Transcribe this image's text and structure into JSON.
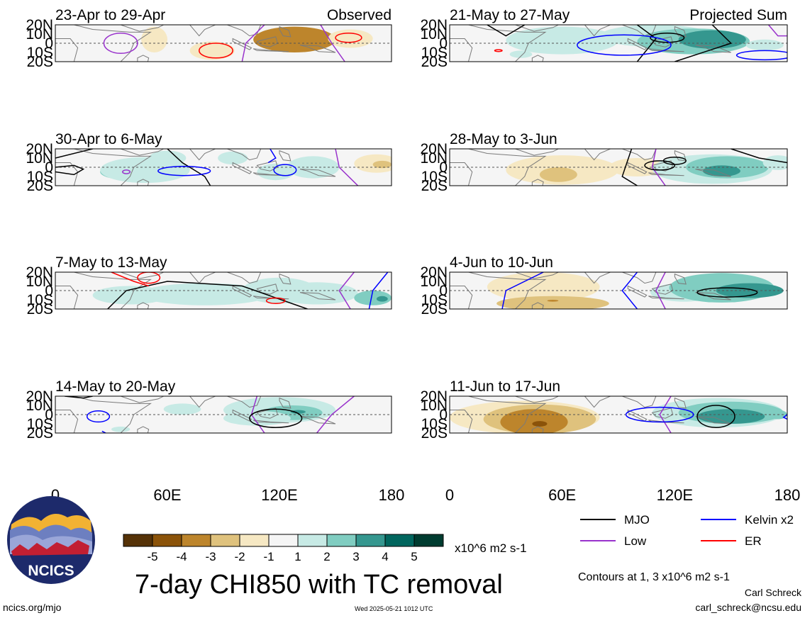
{
  "chart_data": {
    "type": "heatmap",
    "title": "7-day CHI850 with TC removal",
    "variable": "CHI850 (7-day mean, TC removed)",
    "units": "x10^6 m2 s-1",
    "xticks": [
      "0",
      "60E",
      "120E",
      "180"
    ],
    "yticks": [
      "20N",
      "10N",
      "0",
      "10S",
      "20S"
    ],
    "xlim": [
      0,
      180
    ],
    "ylim": [
      -20,
      20
    ],
    "colorbar": {
      "labels": [
        "-5",
        "-4",
        "-3",
        "-2",
        "-1",
        "1",
        "2",
        "3",
        "4",
        "5"
      ],
      "colors": [
        "#553207",
        "#8b5309",
        "#bd852c",
        "#dfc27d",
        "#f6e8c3",
        "#f5f5f5",
        "#c7eae5",
        "#80cdc1",
        "#35978f",
        "#01665e",
        "#003c30"
      ]
    },
    "contour_note": "Contours at 1, 3 x10^6 m2 s-1",
    "legend": [
      {
        "label": "MJO",
        "color": "#000000"
      },
      {
        "label": "Kelvin x2",
        "color": "#0000ff"
      },
      {
        "label": "Low",
        "color": "#9932cc"
      },
      {
        "label": "ER",
        "color": "#ff0000"
      }
    ],
    "panels": [
      {
        "period": "23-Apr to 29-Apr",
        "tag": "Observed"
      },
      {
        "period": "30-Apr to 6-May",
        "tag": ""
      },
      {
        "period": "7-May to 13-May",
        "tag": ""
      },
      {
        "period": "14-May to 20-May",
        "tag": ""
      },
      {
        "period": "21-May to 27-May",
        "tag": "Projected Sum"
      },
      {
        "period": "28-May to 3-Jun",
        "tag": ""
      },
      {
        "period": "4-Jun to 10-Jun",
        "tag": ""
      },
      {
        "period": "11-Jun to 17-Jun",
        "tag": ""
      }
    ]
  },
  "footer": {
    "logo_text": "NCICS",
    "url": "ncics.org/mjo",
    "timestamp": "Wed 2025-05-21 1012 UTC",
    "author": "Carl Schreck",
    "email": "carl_schreck@ncsu.edu"
  }
}
